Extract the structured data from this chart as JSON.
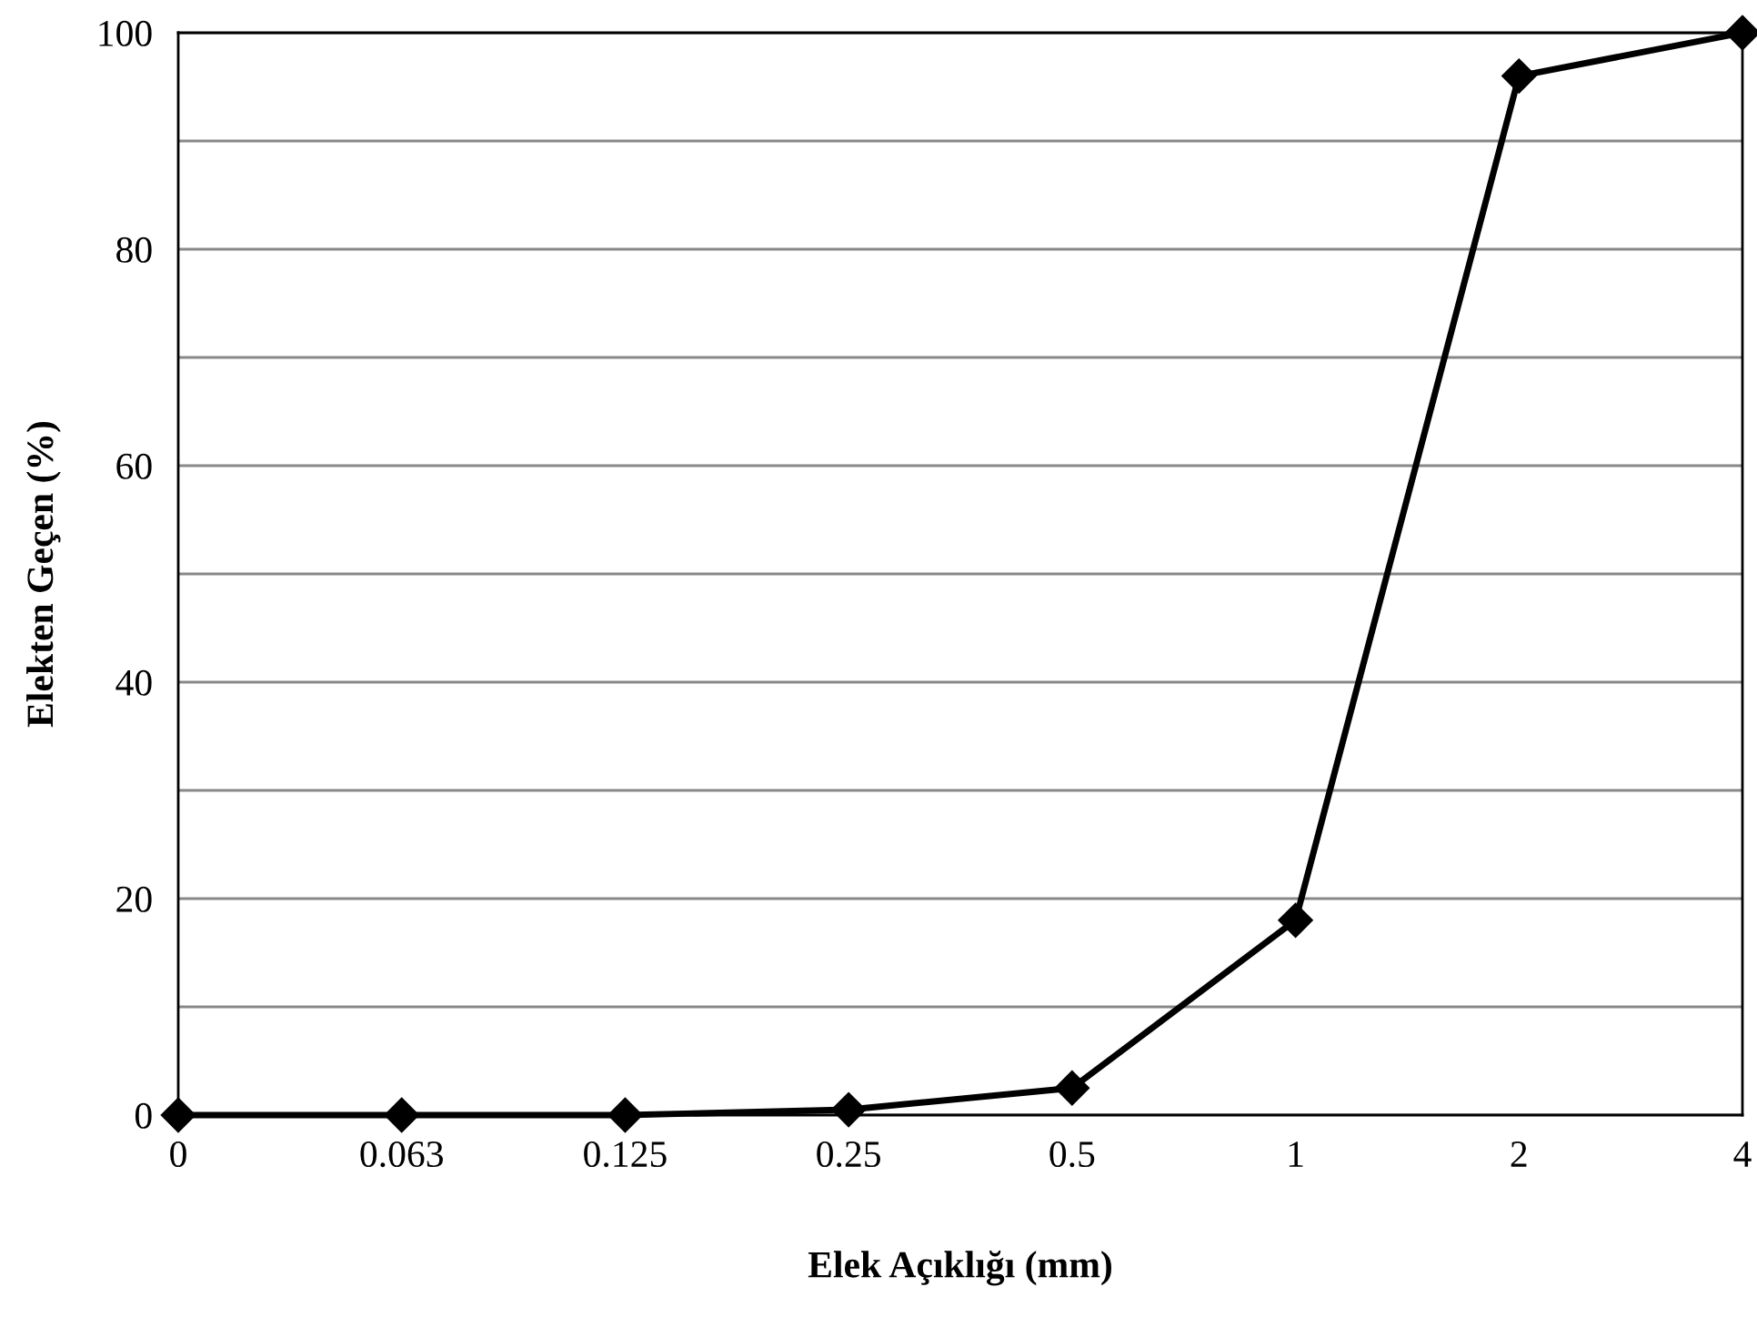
{
  "chart_data": {
    "type": "line",
    "xlabel": "Elek Açıklığı (mm)",
    "ylabel": "Elekten Geçen (%)",
    "categories": [
      "0",
      "0.063",
      "0.125",
      "0.25",
      "0.5",
      "1",
      "2",
      "4"
    ],
    "series": [
      {
        "color": "#000000",
        "values": [
          0,
          0,
          0,
          0.5,
          2.5,
          18,
          96,
          100
        ]
      }
    ],
    "ylim": [
      0,
      100
    ],
    "yticks": [
      0,
      {
        "value": 10,
        "label": null
      },
      20,
      {
        "value": 30,
        "label": null
      },
      40,
      {
        "value": 50,
        "label": null
      },
      60,
      {
        "value": 70,
        "label": null
      },
      80,
      {
        "value": 90,
        "label": null
      },
      100
    ],
    "grid": "y",
    "marker": "diamond",
    "line_style": "solid"
  }
}
